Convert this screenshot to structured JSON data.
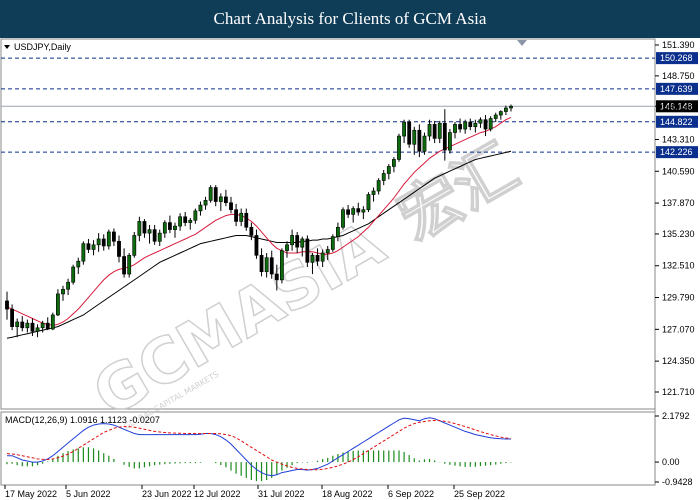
{
  "banner_title": "Chart Analysis for Clients of GCM Asia",
  "symbol_label": "USDJPY,Daily",
  "macd_label": "MACD(12,26,9) 1.0916 1.1123 -0.0207",
  "watermark": {
    "brand": "GCMASIA",
    "chinese": "宏汇",
    "tagline": "GLOBAL CAPITAL MARKETS"
  },
  "colors": {
    "banner": "#0f3d57",
    "price_box": "#0b2f8c",
    "level_line": "#0b2f8c",
    "ma_fast": "#d81b3c",
    "ma_slow": "#000000",
    "macd_line": "#1f3fd6",
    "signal_line": "#e01010",
    "histogram": "#1a8a1a",
    "candle_up": "#0c6b0c"
  },
  "chart_data": [
    {
      "type": "candlestick",
      "title": "USDJPY,Daily",
      "ylim": [
        121.71,
        151.39
      ],
      "y_ticks": [
        "151.390",
        "148.750",
        "146.148",
        "143.310",
        "140.590",
        "137.870",
        "135.230",
        "132.510",
        "129.790",
        "127.070",
        "124.350",
        "121.710"
      ],
      "x_ticks": [
        "17 May 2022",
        "5 Jun 2022",
        "23 Jun 2022",
        "12 Jul 2022",
        "31 Jul 2022",
        "18 Aug 2022",
        "6 Sep 2022",
        "25 Sep 2022"
      ],
      "levels": [
        {
          "value": 150.268,
          "label": "150.268"
        },
        {
          "value": 147.639,
          "label": "147.639"
        },
        {
          "value": 144.822,
          "label": "144.822"
        },
        {
          "value": 142.226,
          "label": "142.226"
        }
      ],
      "current_price": {
        "value": 146.148,
        "label": "146.148"
      },
      "candles": [
        [
          129.5,
          130.3,
          127.9,
          128.8
        ],
        [
          128.8,
          129.2,
          127.0,
          127.3
        ],
        [
          127.3,
          128.0,
          126.4,
          127.7
        ],
        [
          127.7,
          128.2,
          126.9,
          127.2
        ],
        [
          127.2,
          127.9,
          126.8,
          127.6
        ],
        [
          127.6,
          128.0,
          126.5,
          126.9
        ],
        [
          126.9,
          127.5,
          126.4,
          127.2
        ],
        [
          127.2,
          127.8,
          126.8,
          127.6
        ],
        [
          127.6,
          128.1,
          127.0,
          127.1
        ],
        [
          127.1,
          128.5,
          127.0,
          128.3
        ],
        [
          128.3,
          130.5,
          128.2,
          130.1
        ],
        [
          130.1,
          130.8,
          129.5,
          130.5
        ],
        [
          130.5,
          131.4,
          130.0,
          131.1
        ],
        [
          131.1,
          132.6,
          130.9,
          132.4
        ],
        [
          132.4,
          133.2,
          131.8,
          132.9
        ],
        [
          132.9,
          134.6,
          132.6,
          134.4
        ],
        [
          134.4,
          134.8,
          133.6,
          133.9
        ],
        [
          133.9,
          134.7,
          133.4,
          134.3
        ],
        [
          134.3,
          135.3,
          133.7,
          134.8
        ],
        [
          134.8,
          135.2,
          133.8,
          134.2
        ],
        [
          134.2,
          135.6,
          133.9,
          135.4
        ],
        [
          135.4,
          135.7,
          134.2,
          134.6
        ],
        [
          134.6,
          135.1,
          132.8,
          133.3
        ],
        [
          133.3,
          134.0,
          131.5,
          131.8
        ],
        [
          131.8,
          133.6,
          131.5,
          133.4
        ],
        [
          133.4,
          135.4,
          133.2,
          135.1
        ],
        [
          135.1,
          136.7,
          134.6,
          136.3
        ],
        [
          136.3,
          136.5,
          134.9,
          135.3
        ],
        [
          135.3,
          136.0,
          134.4,
          135.6
        ],
        [
          135.6,
          136.0,
          134.3,
          134.6
        ],
        [
          134.6,
          135.6,
          134.2,
          135.3
        ],
        [
          135.3,
          136.4,
          134.9,
          136.2
        ],
        [
          136.2,
          136.8,
          135.3,
          135.6
        ],
        [
          135.6,
          136.2,
          134.9,
          135.9
        ],
        [
          135.9,
          137.0,
          135.5,
          136.7
        ],
        [
          136.7,
          137.1,
          135.9,
          136.2
        ],
        [
          136.2,
          136.6,
          135.6,
          136.4
        ],
        [
          136.4,
          137.4,
          136.1,
          137.2
        ],
        [
          137.2,
          138.0,
          136.8,
          137.7
        ],
        [
          137.7,
          138.4,
          137.3,
          138.1
        ],
        [
          138.1,
          139.4,
          137.9,
          139.2
        ],
        [
          139.2,
          139.4,
          137.6,
          138.0
        ],
        [
          138.0,
          138.7,
          137.2,
          138.4
        ],
        [
          138.4,
          139.0,
          137.6,
          137.9
        ],
        [
          137.9,
          138.4,
          137.0,
          137.3
        ],
        [
          137.3,
          137.8,
          135.9,
          136.3
        ],
        [
          136.3,
          137.4,
          135.9,
          137.0
        ],
        [
          137.0,
          137.4,
          135.5,
          135.8
        ],
        [
          135.8,
          136.2,
          134.7,
          135.1
        ],
        [
          135.1,
          135.6,
          133.1,
          133.4
        ],
        [
          133.4,
          134.0,
          131.6,
          132.0
        ],
        [
          132.0,
          133.6,
          131.5,
          133.2
        ],
        [
          133.2,
          133.8,
          131.4,
          131.8
        ],
        [
          131.8,
          132.6,
          130.4,
          131.3
        ],
        [
          131.3,
          134.0,
          131.0,
          133.8
        ],
        [
          133.8,
          134.6,
          133.2,
          134.3
        ],
        [
          134.3,
          135.6,
          133.8,
          135.1
        ],
        [
          135.1,
          135.4,
          133.6,
          134.1
        ],
        [
          134.1,
          135.0,
          133.3,
          134.8
        ],
        [
          134.8,
          135.1,
          132.4,
          132.8
        ],
        [
          132.8,
          133.6,
          131.8,
          133.4
        ],
        [
          133.4,
          134.0,
          132.5,
          132.9
        ],
        [
          132.9,
          133.9,
          132.4,
          133.6
        ],
        [
          133.6,
          134.2,
          133.0,
          133.9
        ],
        [
          133.9,
          135.2,
          133.7,
          135.0
        ],
        [
          135.0,
          136.2,
          134.6,
          135.8
        ],
        [
          135.8,
          137.5,
          135.6,
          137.3
        ],
        [
          137.3,
          137.7,
          136.6,
          136.9
        ],
        [
          136.9,
          137.6,
          136.2,
          137.4
        ],
        [
          137.4,
          137.9,
          136.8,
          137.1
        ],
        [
          137.1,
          137.6,
          136.5,
          137.3
        ],
        [
          137.3,
          138.8,
          137.1,
          138.6
        ],
        [
          138.6,
          139.2,
          138.0,
          138.9
        ],
        [
          138.9,
          140.0,
          138.6,
          139.8
        ],
        [
          139.8,
          140.7,
          139.4,
          140.4
        ],
        [
          140.4,
          141.2,
          139.9,
          141.0
        ],
        [
          141.0,
          141.8,
          140.5,
          141.6
        ],
        [
          141.6,
          143.8,
          141.4,
          143.6
        ],
        [
          143.6,
          145.0,
          143.0,
          144.8
        ],
        [
          144.8,
          145.0,
          142.6,
          142.9
        ],
        [
          142.9,
          144.4,
          142.0,
          144.1
        ],
        [
          144.1,
          144.6,
          141.8,
          142.3
        ],
        [
          142.3,
          143.9,
          142.0,
          143.6
        ],
        [
          143.6,
          145.0,
          143.2,
          144.6
        ],
        [
          144.6,
          144.9,
          143.0,
          143.4
        ],
        [
          143.4,
          144.9,
          143.0,
          144.7
        ],
        [
          144.7,
          145.9,
          141.5,
          142.4
        ],
        [
          142.4,
          144.2,
          142.1,
          143.9
        ],
        [
          143.9,
          144.8,
          143.4,
          144.6
        ],
        [
          144.6,
          145.1,
          143.9,
          144.2
        ],
        [
          144.2,
          145.0,
          143.8,
          144.8
        ],
        [
          144.8,
          145.1,
          144.1,
          144.4
        ],
        [
          144.4,
          145.0,
          143.9,
          144.7
        ],
        [
          144.7,
          145.2,
          144.3,
          145.0
        ],
        [
          145.0,
          145.4,
          143.6,
          144.2
        ],
        [
          144.2,
          145.3,
          144.0,
          145.1
        ],
        [
          145.1,
          145.6,
          144.8,
          145.4
        ],
        [
          145.4,
          145.8,
          145.0,
          145.7
        ],
        [
          145.7,
          146.2,
          145.4,
          146.0
        ],
        [
          146.0,
          146.3,
          145.7,
          146.15
        ]
      ],
      "ma_fast": [
        129.0,
        128.8,
        128.6,
        128.4,
        128.2,
        128.0,
        127.8,
        127.6,
        127.5,
        127.4,
        127.5,
        127.7,
        128.0,
        128.4,
        128.8,
        129.3,
        129.8,
        130.3,
        130.8,
        131.3,
        131.7,
        132.0,
        132.2,
        132.3,
        132.4,
        132.6,
        132.9,
        133.2,
        133.4,
        133.6,
        133.8,
        134.0,
        134.2,
        134.4,
        134.6,
        134.8,
        135.0,
        135.2,
        135.5,
        135.8,
        136.1,
        136.4,
        136.6,
        136.8,
        136.9,
        136.9,
        136.8,
        136.6,
        136.3,
        135.9,
        135.4,
        134.9,
        134.4,
        134.0,
        133.8,
        133.6,
        133.6,
        133.6,
        133.7,
        133.7,
        133.7,
        133.6,
        133.5,
        133.5,
        133.6,
        133.8,
        134.1,
        134.4,
        134.7,
        135.0,
        135.4,
        135.8,
        136.3,
        136.8,
        137.3,
        137.8,
        138.3,
        138.9,
        139.5,
        140.0,
        140.5,
        140.9,
        141.3,
        141.7,
        142.0,
        142.3,
        142.5,
        142.7,
        142.9,
        143.1,
        143.3,
        143.5,
        143.7,
        143.9,
        144.0,
        144.2,
        144.4,
        144.7,
        145.0,
        145.2
      ],
      "ma_slow": [
        126.3,
        126.4,
        126.5,
        126.6,
        126.7,
        126.8,
        126.9,
        127.0,
        127.1,
        127.2,
        127.3,
        127.5,
        127.7,
        127.9,
        128.1,
        128.3,
        128.6,
        128.9,
        129.2,
        129.5,
        129.8,
        130.1,
        130.4,
        130.7,
        131.0,
        131.3,
        131.6,
        131.9,
        132.2,
        132.5,
        132.8,
        133.0,
        133.2,
        133.4,
        133.6,
        133.8,
        134.0,
        134.2,
        134.4,
        134.5,
        134.6,
        134.7,
        134.8,
        134.9,
        135.0,
        135.1,
        135.1,
        135.1,
        135.0,
        134.9,
        134.8,
        134.7,
        134.6,
        134.5,
        134.5,
        134.5,
        134.5,
        134.5,
        134.6,
        134.6,
        134.7,
        134.7,
        134.8,
        134.8,
        134.9,
        135.0,
        135.1,
        135.3,
        135.5,
        135.7,
        135.9,
        136.1,
        136.4,
        136.7,
        137.0,
        137.3,
        137.6,
        137.9,
        138.2,
        138.5,
        138.8,
        139.1,
        139.4,
        139.7,
        140.0,
        140.2,
        140.4,
        140.6,
        140.8,
        141.0,
        141.2,
        141.4,
        141.6,
        141.7,
        141.8,
        141.9,
        142.0,
        142.1,
        142.2,
        142.3
      ]
    },
    {
      "type": "macd",
      "title": "MACD(12,26,9) 1.0916 1.1123 -0.0207",
      "ylim": [
        -0.9428,
        2.1792
      ],
      "y_ticks": [
        "2.1792",
        "0.00",
        "-0.9428"
      ],
      "macd": [
        0.3,
        0.3,
        0.2,
        0.1,
        0.05,
        0.0,
        0.0,
        0.05,
        0.15,
        0.3,
        0.5,
        0.7,
        0.9,
        1.1,
        1.3,
        1.5,
        1.65,
        1.75,
        1.8,
        1.82,
        1.8,
        1.75,
        1.65,
        1.55,
        1.45,
        1.35,
        1.3,
        1.3,
        1.3,
        1.3,
        1.3,
        1.3,
        1.3,
        1.3,
        1.3,
        1.3,
        1.3,
        1.3,
        1.32,
        1.35,
        1.35,
        1.3,
        1.2,
        1.05,
        0.85,
        0.6,
        0.35,
        0.1,
        -0.15,
        -0.35,
        -0.5,
        -0.6,
        -0.65,
        -0.6,
        -0.5,
        -0.45,
        -0.4,
        -0.35,
        -0.35,
        -0.38,
        -0.35,
        -0.3,
        -0.2,
        -0.1,
        0.05,
        0.2,
        0.35,
        0.5,
        0.65,
        0.8,
        0.95,
        1.1,
        1.25,
        1.4,
        1.55,
        1.7,
        1.85,
        2.0,
        2.08,
        2.05,
        2.0,
        1.95,
        2.05,
        2.1,
        2.05,
        1.95,
        1.85,
        1.75,
        1.65,
        1.55,
        1.45,
        1.38,
        1.3,
        1.25,
        1.2,
        1.15,
        1.12,
        1.1,
        1.09,
        1.09
      ],
      "signal": [
        0.4,
        0.38,
        0.35,
        0.3,
        0.25,
        0.2,
        0.15,
        0.13,
        0.12,
        0.15,
        0.2,
        0.28,
        0.38,
        0.5,
        0.65,
        0.8,
        0.95,
        1.1,
        1.25,
        1.4,
        1.5,
        1.6,
        1.65,
        1.68,
        1.68,
        1.65,
        1.6,
        1.55,
        1.5,
        1.45,
        1.42,
        1.4,
        1.38,
        1.37,
        1.36,
        1.35,
        1.35,
        1.35,
        1.35,
        1.35,
        1.35,
        1.35,
        1.34,
        1.3,
        1.25,
        1.15,
        1.0,
        0.85,
        0.7,
        0.55,
        0.4,
        0.25,
        0.1,
        0.0,
        -0.1,
        -0.18,
        -0.25,
        -0.3,
        -0.33,
        -0.35,
        -0.36,
        -0.36,
        -0.34,
        -0.3,
        -0.25,
        -0.18,
        -0.1,
        0.0,
        0.12,
        0.25,
        0.4,
        0.55,
        0.7,
        0.85,
        1.0,
        1.15,
        1.3,
        1.45,
        1.6,
        1.72,
        1.82,
        1.88,
        1.92,
        1.95,
        1.97,
        1.96,
        1.93,
        1.88,
        1.82,
        1.75,
        1.68,
        1.6,
        1.52,
        1.44,
        1.37,
        1.3,
        1.24,
        1.18,
        1.14,
        1.11
      ]
    }
  ]
}
